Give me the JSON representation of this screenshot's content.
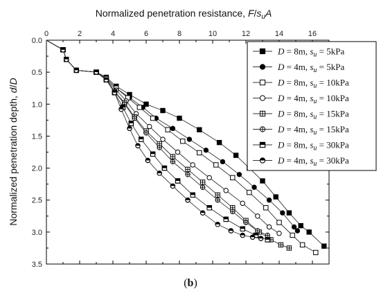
{
  "caption": {
    "open": "(",
    "label": "b",
    "close": ")"
  },
  "chart_data": {
    "type": "line",
    "xlabel": "Normalized penetration resistance, F/sᵤA",
    "xlabel_parts": [
      "Normalized penetration resistance, ",
      "F",
      "/",
      "s",
      "u",
      "A"
    ],
    "ylabel": "Normalized penetration depth, d/D",
    "ylabel_parts": [
      "Normalized penetration depth, ",
      "d",
      "/",
      "D"
    ],
    "xlim": [
      0,
      17
    ],
    "ylim": [
      0,
      3.5
    ],
    "y_inverted": true,
    "x_axis_position": "top",
    "x_ticks": [
      0,
      2,
      4,
      6,
      8,
      10,
      12,
      14,
      16
    ],
    "y_ticks": [
      0.0,
      0.5,
      1.0,
      1.5,
      2.0,
      2.5,
      3.0,
      3.5
    ],
    "y_tick_labels": [
      "0.0",
      "0.5",
      "1.0",
      "1.5",
      "2.0",
      "2.5",
      "3.0",
      "3.5"
    ],
    "grid": false,
    "legend_position": "top-right",
    "series": [
      {
        "name": "D = 8m, su = 5kPa",
        "legend": {
          "D": "D",
          "eq1": " = 8m, ",
          "s": "s",
          "sub": "u",
          "rest": " = 5kPa"
        },
        "marker": "square",
        "fill": "full",
        "x": [
          0,
          1.0,
          1.2,
          1.8,
          3.0,
          3.6,
          4.2,
          5.0,
          6.0,
          7.0,
          8.0,
          9.2,
          10.4,
          11.4,
          12.2,
          13.0,
          13.8,
          14.6,
          15.3,
          15.8,
          16.7
        ],
        "y": [
          0,
          0.15,
          0.3,
          0.47,
          0.5,
          0.58,
          0.72,
          0.85,
          1.0,
          1.1,
          1.22,
          1.4,
          1.6,
          1.8,
          2.0,
          2.2,
          2.45,
          2.7,
          2.9,
          3.0,
          3.22
        ]
      },
      {
        "name": "D = 4m, su = 5kPa",
        "legend": {
          "D": "D",
          "eq1": " = 4m, ",
          "s": "s",
          "sub": "u",
          "rest": " = 5kPa"
        },
        "marker": "circle",
        "fill": "full",
        "x": [
          0,
          1.0,
          1.2,
          1.8,
          3.0,
          3.6,
          4.2,
          5.0,
          5.8,
          6.6,
          7.6,
          8.6,
          9.6,
          10.6,
          11.6,
          12.5,
          13.4,
          14.2,
          14.9,
          15.1
        ],
        "y": [
          0,
          0.15,
          0.3,
          0.47,
          0.5,
          0.6,
          0.75,
          0.9,
          1.05,
          1.22,
          1.38,
          1.55,
          1.72,
          1.9,
          2.1,
          2.3,
          2.5,
          2.7,
          2.92,
          2.98
        ]
      },
      {
        "name": "D = 8m, su = 10kPa",
        "legend": {
          "D": "D",
          "eq1": " = 8m, ",
          "s": "s",
          "sub": "u",
          "rest": " = 10kPa"
        },
        "marker": "square",
        "fill": "open",
        "x": [
          0,
          1.0,
          1.2,
          1.8,
          3.0,
          3.6,
          4.2,
          4.9,
          5.6,
          6.4,
          7.3,
          8.2,
          9.2,
          10.2,
          11.2,
          12.2,
          13.2,
          14.0,
          14.8,
          15.4,
          16.2
        ],
        "y": [
          0,
          0.15,
          0.3,
          0.47,
          0.5,
          0.6,
          0.75,
          0.9,
          1.05,
          1.22,
          1.4,
          1.58,
          1.76,
          1.95,
          2.15,
          2.38,
          2.62,
          2.85,
          3.05,
          3.2,
          3.32
        ]
      },
      {
        "name": "D = 4m, su = 10kPa",
        "legend": {
          "D": "D",
          "eq1": " = 4m, ",
          "s": "s",
          "sub": "u",
          "rest": " = 10kPa"
        },
        "marker": "circle",
        "fill": "open",
        "x": [
          0,
          1.0,
          1.2,
          1.8,
          3.0,
          3.6,
          4.2,
          4.8,
          5.4,
          6.2,
          7.0,
          7.9,
          8.8,
          9.8,
          10.8,
          11.8,
          12.7,
          13.4,
          14.0
        ],
        "y": [
          0,
          0.15,
          0.3,
          0.47,
          0.5,
          0.62,
          0.78,
          0.95,
          1.15,
          1.35,
          1.55,
          1.75,
          1.95,
          2.15,
          2.35,
          2.55,
          2.75,
          2.92,
          3.02
        ]
      },
      {
        "name": "D = 8m, su = 15kPa",
        "legend": {
          "D": "D",
          "eq1": " = 8m, ",
          "s": "s",
          "sub": "u",
          "rest": " = 15kPa"
        },
        "marker": "square",
        "fill": "cross",
        "x": [
          0,
          1.0,
          1.2,
          1.8,
          3.0,
          3.6,
          4.1,
          4.7,
          5.3,
          6.0,
          6.8,
          7.6,
          8.5,
          9.4,
          10.3,
          11.2,
          12.0,
          12.8,
          13.5,
          14.1,
          14.6
        ],
        "y": [
          0,
          0.15,
          0.3,
          0.47,
          0.5,
          0.62,
          0.8,
          0.98,
          1.2,
          1.42,
          1.62,
          1.82,
          2.02,
          2.22,
          2.42,
          2.62,
          2.82,
          3.0,
          3.12,
          3.2,
          3.25
        ]
      },
      {
        "name": "D = 4m, su = 15kPa",
        "legend": {
          "D": "D",
          "eq1": " = 4m, ",
          "s": "s",
          "sub": "u",
          "rest": " = 15kPa"
        },
        "marker": "circle",
        "fill": "cross",
        "x": [
          0,
          1.0,
          1.2,
          1.8,
          3.0,
          3.6,
          4.1,
          4.7,
          5.3,
          6.0,
          6.8,
          7.6,
          8.5,
          9.4,
          10.3,
          11.2,
          12.0,
          12.7,
          13.3
        ],
        "y": [
          0,
          0.15,
          0.3,
          0.47,
          0.5,
          0.62,
          0.8,
          1.0,
          1.22,
          1.45,
          1.68,
          1.9,
          2.1,
          2.3,
          2.5,
          2.68,
          2.85,
          2.98,
          3.05
        ]
      },
      {
        "name": "D = 8m, su = 30kPa",
        "legend": {
          "D": "D",
          "eq1": " = 8m, ",
          "s": "s",
          "sub": "u",
          "rest": " = 30kPa"
        },
        "marker": "square",
        "fill": "half",
        "x": [
          0,
          1.0,
          1.2,
          1.8,
          3.0,
          3.6,
          4.1,
          4.6,
          5.1,
          5.7,
          6.4,
          7.1,
          7.9,
          8.8,
          9.8,
          10.8,
          11.8,
          12.6,
          13.3
        ],
        "y": [
          0,
          0.15,
          0.3,
          0.47,
          0.5,
          0.62,
          0.82,
          1.05,
          1.3,
          1.55,
          1.78,
          2.0,
          2.2,
          2.42,
          2.62,
          2.8,
          2.95,
          3.05,
          3.12
        ]
      },
      {
        "name": "D = 4m, su = 30kPa",
        "legend": {
          "D": "D",
          "eq1": " = 4m, ",
          "s": "s",
          "sub": "u",
          "rest": " = 30kPa"
        },
        "marker": "circle",
        "fill": "half",
        "x": [
          0,
          1.0,
          1.2,
          1.8,
          3.0,
          3.6,
          4.1,
          4.5,
          5.0,
          5.5,
          6.1,
          6.8,
          7.6,
          8.5,
          9.4,
          10.3,
          11.1,
          11.8,
          12.4,
          12.9
        ],
        "y": [
          0,
          0.15,
          0.3,
          0.47,
          0.5,
          0.62,
          0.82,
          1.08,
          1.38,
          1.65,
          1.88,
          2.08,
          2.28,
          2.5,
          2.7,
          2.88,
          2.98,
          3.05,
          3.08,
          3.1
        ]
      }
    ]
  }
}
